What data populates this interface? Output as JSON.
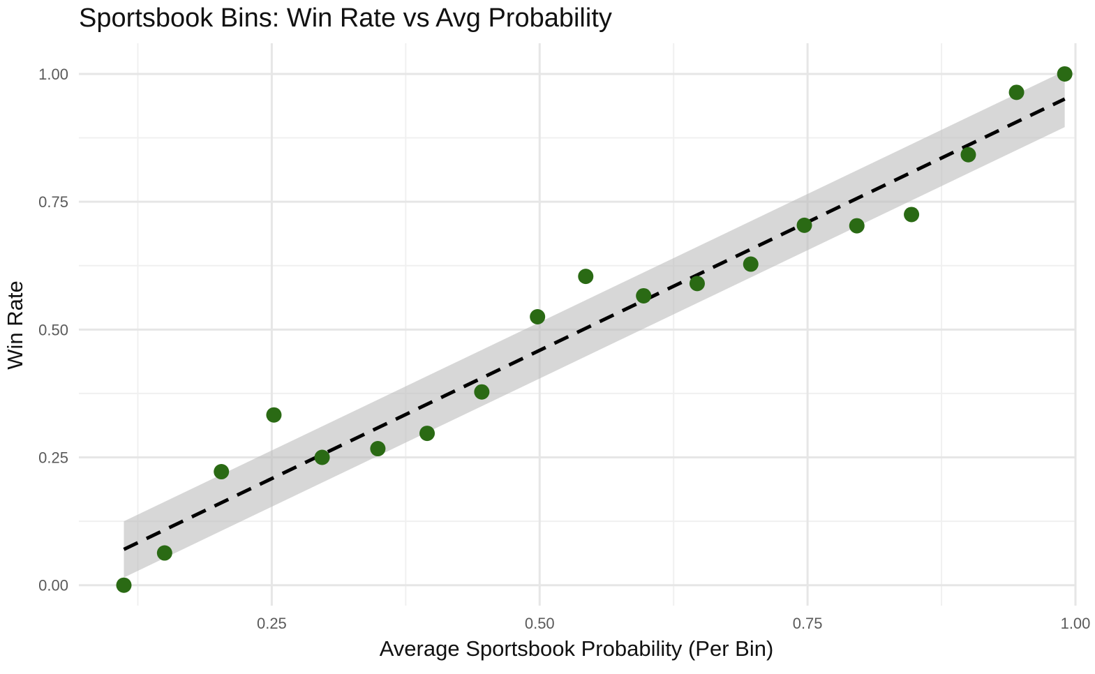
{
  "chart_data": {
    "type": "scatter",
    "title": "Sportsbook Bins: Win Rate vs Avg Probability",
    "xlabel": "Average Sportsbook Probability (Per Bin)",
    "ylabel": "Win Rate",
    "xlim": [
      0.07,
      1.0
    ],
    "ylim": [
      -0.04,
      1.06
    ],
    "x_ticks": [
      0.25,
      0.5,
      0.75,
      1.0
    ],
    "x_tick_labels": [
      "0.25",
      "0.50",
      "0.75",
      "1.00"
    ],
    "y_ticks": [
      0.0,
      0.25,
      0.5,
      0.75,
      1.0
    ],
    "y_tick_labels": [
      "0.00",
      "0.25",
      "0.50",
      "0.75",
      "1.00"
    ],
    "grid": true,
    "point_color": "#2a6a14",
    "band_color": "#bdbdbd",
    "line_color": "#000000",
    "points": [
      {
        "x": 0.112,
        "y": 0.0
      },
      {
        "x": 0.15,
        "y": 0.063
      },
      {
        "x": 0.203,
        "y": 0.222
      },
      {
        "x": 0.252,
        "y": 0.333
      },
      {
        "x": 0.297,
        "y": 0.25
      },
      {
        "x": 0.349,
        "y": 0.267
      },
      {
        "x": 0.395,
        "y": 0.297
      },
      {
        "x": 0.446,
        "y": 0.378
      },
      {
        "x": 0.498,
        "y": 0.525
      },
      {
        "x": 0.543,
        "y": 0.604
      },
      {
        "x": 0.597,
        "y": 0.566
      },
      {
        "x": 0.647,
        "y": 0.59
      },
      {
        "x": 0.697,
        "y": 0.628
      },
      {
        "x": 0.747,
        "y": 0.704
      },
      {
        "x": 0.796,
        "y": 0.703
      },
      {
        "x": 0.847,
        "y": 0.725
      },
      {
        "x": 0.9,
        "y": 0.842
      },
      {
        "x": 0.945,
        "y": 0.964
      },
      {
        "x": 0.99,
        "y": 1.0
      }
    ],
    "fit_line": {
      "x": [
        0.112,
        0.99
      ],
      "y": [
        0.07,
        0.951
      ],
      "style": "dashed"
    },
    "confidence_band": {
      "x": [
        0.112,
        0.99
      ],
      "lower": [
        0.015,
        0.896
      ],
      "upper": [
        0.125,
        1.006
      ]
    }
  }
}
